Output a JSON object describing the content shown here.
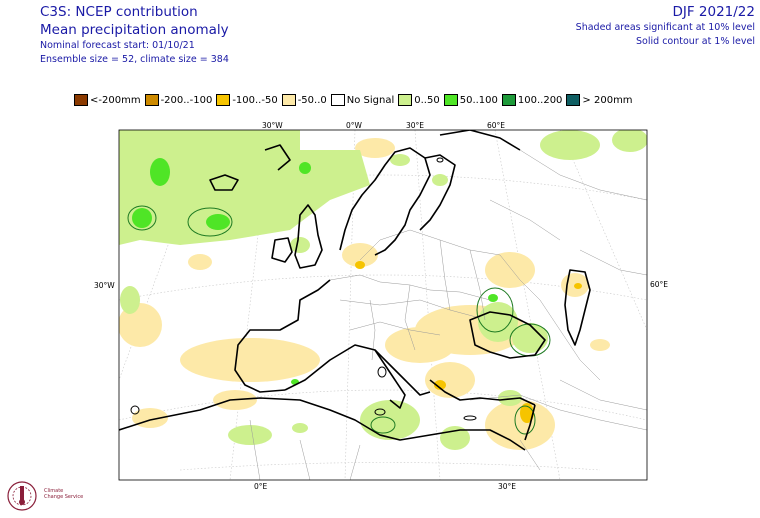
{
  "header": {
    "title": "C3S: NCEP contribution",
    "subtitle": "Mean precipitation anomaly",
    "forecast_start": "Nominal forecast start: 01/10/21",
    "ensemble": "Ensemble size = 52, climate size = 384",
    "season": "DJF 2021/22",
    "note_shaded": "Shaded areas significant at 10% level",
    "note_contour": "Solid contour at 1% level"
  },
  "legend": [
    {
      "label": "<-200mm",
      "color": "#8b3a00"
    },
    {
      "label": "-200..-100",
      "color": "#cd8a00"
    },
    {
      "label": "-100..-50",
      "color": "#f6c400"
    },
    {
      "label": "-50..0",
      "color": "#fde9a8"
    },
    {
      "label": "No Signal",
      "color": "#ffffff"
    },
    {
      "label": "0..50",
      "color": "#cdf08e"
    },
    {
      "label": "50..100",
      "color": "#4fe526"
    },
    {
      "label": "100..200",
      "color": "#1e9a3a"
    },
    {
      "label": "> 200mm",
      "color": "#0f5f63"
    }
  ],
  "map": {
    "top_lon_labels": [
      "30°W",
      "0°W",
      "30°E",
      "60°E"
    ],
    "bottom_lon_labels": [
      "0°E",
      "30°E"
    ],
    "left_label": "30°W",
    "right_label": "60°E"
  },
  "logo": {
    "line1": "Climate",
    "line2": "Change Service"
  }
}
